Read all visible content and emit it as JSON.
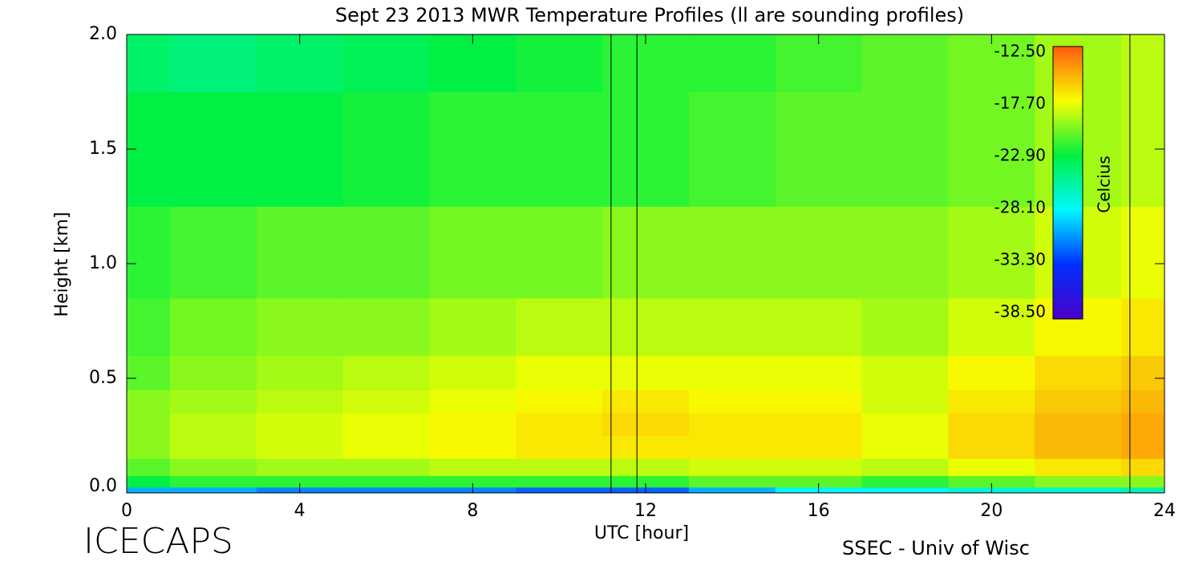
{
  "chart_data": {
    "type": "heatmap",
    "title": "Sept 23 2013 MWR Temperature Profiles (ll are sounding profiles)",
    "xlabel": "UTC [hour]",
    "ylabel": "Height [km]",
    "left_caption": "ICECAPS",
    "right_caption": "SSEC - Univ of Wisc",
    "colorbar_label": "Celcius",
    "x": [
      0,
      2,
      4,
      6,
      8,
      10,
      12,
      14,
      16,
      18,
      20,
      22,
      24
    ],
    "y": [
      0,
      0.05,
      0.1,
      0.2,
      0.3,
      0.4,
      0.5,
      0.7,
      1.0,
      1.5,
      2.0
    ],
    "values": [
      [
        -30,
        -30,
        -31,
        -31,
        -31,
        -32,
        -32,
        -30,
        -28,
        -28,
        -27,
        -27,
        -26
      ],
      [
        -23,
        -22,
        -22,
        -22,
        -22,
        -22,
        -22,
        -21,
        -21,
        -22,
        -21,
        -20,
        -20
      ],
      [
        -21,
        -20,
        -19.5,
        -19.5,
        -19,
        -19,
        -19,
        -18.5,
        -18.5,
        -19,
        -18,
        -17,
        -16.5
      ],
      [
        -20,
        -19,
        -18.5,
        -18,
        -17.5,
        -17,
        -17,
        -17,
        -17,
        -18,
        -16.5,
        -15.5,
        -15
      ],
      [
        -20,
        -19,
        -18.5,
        -18,
        -17.5,
        -17,
        -16.5,
        -17,
        -17,
        -18,
        -16.5,
        -15.5,
        -15
      ],
      [
        -20,
        -19.5,
        -19,
        -18.5,
        -18,
        -17.5,
        -17,
        -17.5,
        -17.5,
        -18.5,
        -17,
        -16,
        -15.5
      ],
      [
        -21,
        -20,
        -19.5,
        -19,
        -18.5,
        -18,
        -18,
        -18,
        -18,
        -18.5,
        -17.5,
        -16.5,
        -16
      ],
      [
        -21.5,
        -20.5,
        -20,
        -20,
        -19.5,
        -19,
        -19,
        -19,
        -19,
        -19.5,
        -18.5,
        -17.5,
        -17
      ],
      [
        -22,
        -21.5,
        -21,
        -21,
        -20.5,
        -20.5,
        -20,
        -20,
        -20,
        -20,
        -19.5,
        -18.5,
        -18
      ],
      [
        -23,
        -23,
        -23,
        -22.5,
        -22,
        -22,
        -22,
        -21.5,
        -21,
        -21,
        -20.5,
        -19.5,
        -19
      ],
      [
        -24,
        -24.5,
        -24,
        -23.5,
        -23,
        -22.5,
        -22,
        -22,
        -21.5,
        -21,
        -20.5,
        -19.5,
        -19
      ]
    ],
    "sounding_times": [
      11.2,
      11.8,
      23.2
    ],
    "xlim": [
      0,
      24
    ],
    "xticks": [
      0,
      4,
      8,
      12,
      16,
      20,
      24
    ],
    "ylim": [
      0,
      2
    ],
    "yticks": [
      {
        "value": 0,
        "label": "0.0"
      },
      0.5,
      {
        "value": 1,
        "label": "1.0"
      },
      1.5,
      {
        "value": 2,
        "label": "2.0"
      }
    ],
    "clim": [
      -38.5,
      -12.5
    ],
    "cticks": [
      {
        "value": -12.5,
        "label": "-12.50"
      },
      {
        "value": -17.7,
        "label": "-17.70"
      },
      {
        "value": -22.9,
        "label": "-22.90"
      },
      {
        "value": -28.1,
        "label": "-28.10"
      },
      {
        "value": -33.3,
        "label": "-33.30"
      },
      {
        "value": -38.5,
        "label": "-38.50"
      }
    ],
    "colormap": [
      "#4a00c8",
      "#0030ff",
      "#00f8ff",
      "#00f040",
      "#f8ff00",
      "#ff5a10"
    ]
  }
}
